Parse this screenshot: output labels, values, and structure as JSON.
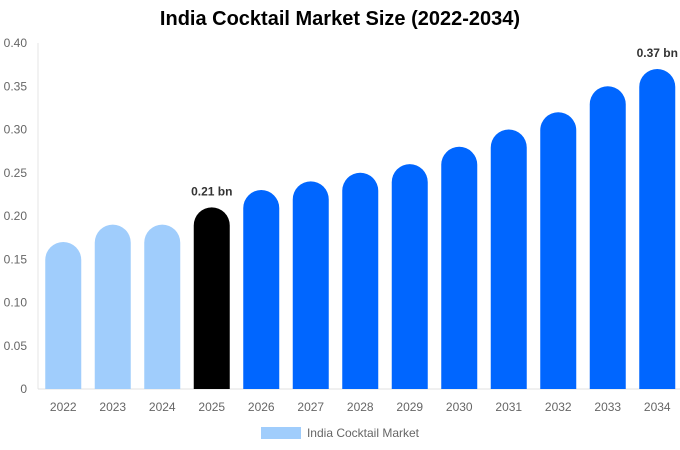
{
  "chart_data": {
    "type": "bar",
    "title": "India Cocktail Market Size (2022-2034)",
    "categories": [
      "2022",
      "2023",
      "2024",
      "2025",
      "2026",
      "2027",
      "2028",
      "2029",
      "2030",
      "2031",
      "2032",
      "2033",
      "2034"
    ],
    "series": [
      {
        "name": "India Cocktail Market",
        "values": [
          0.17,
          0.19,
          0.19,
          0.21,
          0.23,
          0.24,
          0.25,
          0.26,
          0.28,
          0.3,
          0.32,
          0.35,
          0.37
        ]
      }
    ],
    "ylim": [
      0,
      0.4
    ],
    "yticks": [
      "0",
      "0.05",
      "0.10",
      "0.15",
      "0.20",
      "0.25",
      "0.30",
      "0.35",
      "0.40"
    ],
    "data_labels": [
      {
        "category": "2025",
        "text": "0.21 bn"
      },
      {
        "category": "2034",
        "text": "0.37 bn"
      }
    ],
    "bar_colors": {
      "historical": "#a0cdfc",
      "current": "#000000",
      "forecast": "#0066ff"
    },
    "legend_placement": "bottom",
    "grid": false
  }
}
